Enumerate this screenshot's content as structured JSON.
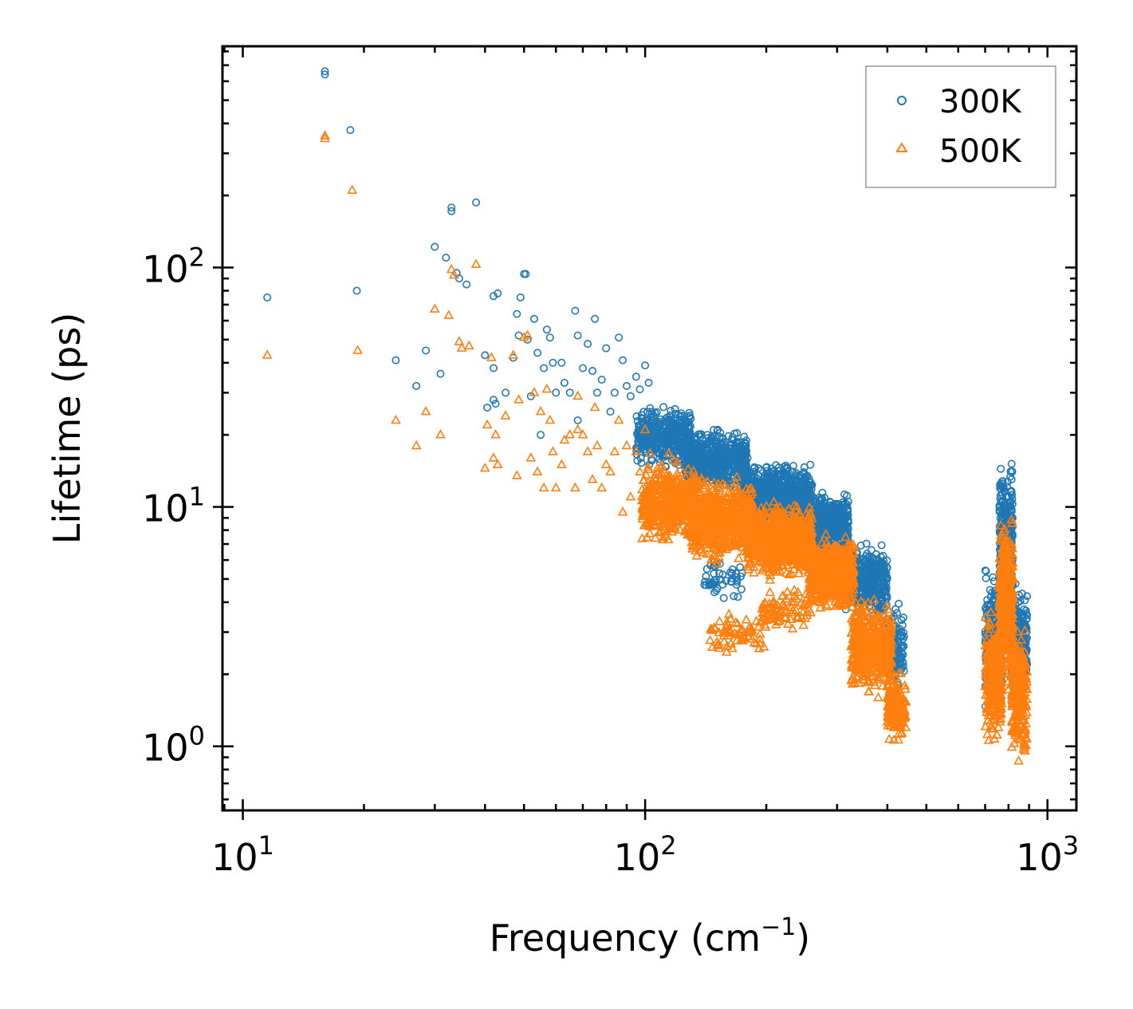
{
  "chart_data": {
    "type": "scatter",
    "title": "",
    "xlabel": "Frequency (cm",
    "xlabel_sup": "−1",
    "xlabel_end": ")",
    "ylabel": "Lifetime (ps)",
    "xscale": "log",
    "yscale": "log",
    "xlim": [
      8.9,
      1180
    ],
    "ylim": [
      0.54,
      840
    ],
    "xticks": [
      {
        "value": 10,
        "base": "10",
        "exp": "1"
      },
      {
        "value": 100,
        "base": "10",
        "exp": "2"
      },
      {
        "value": 1000,
        "base": "10",
        "exp": "3"
      }
    ],
    "yticks": [
      {
        "value": 1,
        "base": "10",
        "exp": "0"
      },
      {
        "value": 10,
        "base": "10",
        "exp": "1"
      },
      {
        "value": 100,
        "base": "10",
        "exp": "2"
      }
    ],
    "legend_position": "top-right",
    "series": [
      {
        "name": "300K",
        "marker": "circle",
        "color": "#1f77b4",
        "points": [
          [
            11.5,
            75
          ],
          [
            16,
            660
          ],
          [
            16,
            640
          ],
          [
            18.5,
            375
          ],
          [
            19.2,
            80
          ],
          [
            24,
            41
          ],
          [
            27,
            32
          ],
          [
            28.5,
            45
          ],
          [
            30,
            122
          ],
          [
            31,
            36
          ],
          [
            32,
            110
          ],
          [
            33,
            178
          ],
          [
            33,
            172
          ],
          [
            34,
            95
          ],
          [
            34.5,
            90
          ],
          [
            36,
            85
          ],
          [
            38,
            187
          ],
          [
            40,
            43
          ],
          [
            40.5,
            26
          ],
          [
            42,
            76
          ],
          [
            42,
            38
          ],
          [
            42,
            28
          ],
          [
            42.5,
            27
          ],
          [
            43,
            78
          ],
          [
            45,
            30
          ],
          [
            47,
            42
          ],
          [
            48,
            64
          ],
          [
            48.5,
            52
          ],
          [
            49,
            75
          ],
          [
            50,
            94
          ],
          [
            50.5,
            94
          ],
          [
            51,
            50
          ],
          [
            52,
            29
          ],
          [
            53,
            61
          ],
          [
            54,
            44
          ],
          [
            55,
            20
          ],
          [
            56,
            38
          ],
          [
            57,
            55
          ],
          [
            58,
            51
          ],
          [
            59,
            40
          ],
          [
            60,
            30
          ],
          [
            62,
            40
          ],
          [
            63,
            33
          ],
          [
            65,
            30
          ],
          [
            67,
            66
          ],
          [
            68,
            52
          ],
          [
            68,
            23
          ],
          [
            70,
            38
          ],
          [
            72,
            48
          ],
          [
            74,
            37
          ],
          [
            75,
            61
          ],
          [
            76,
            30
          ],
          [
            78,
            34
          ],
          [
            80,
            46
          ],
          [
            82,
            25
          ],
          [
            84,
            30
          ],
          [
            86,
            51
          ],
          [
            88,
            41
          ],
          [
            90,
            32
          ],
          [
            92,
            29
          ],
          [
            95,
            35
          ],
          [
            97,
            31
          ],
          [
            100,
            39
          ],
          [
            102,
            33
          ]
        ],
        "clusters": [
          {
            "x_min": 95,
            "x_max": 130,
            "y_min": 14,
            "y_max": 28,
            "count": 380
          },
          {
            "x_min": 125,
            "x_max": 180,
            "y_min": 11,
            "y_max": 22,
            "count": 600
          },
          {
            "x_min": 175,
            "x_max": 260,
            "y_min": 8,
            "y_max": 16,
            "count": 750
          },
          {
            "x_min": 255,
            "x_max": 320,
            "y_min": 6,
            "y_max": 12,
            "count": 500
          },
          {
            "x_min": 315,
            "x_max": 400,
            "y_min": 3.2,
            "y_max": 7.5,
            "count": 450
          },
          {
            "x_min": 395,
            "x_max": 440,
            "y_min": 1.6,
            "y_max": 4.2,
            "count": 150
          },
          {
            "x_min": 140,
            "x_max": 175,
            "y_min": 3.9,
            "y_max": 6.5,
            "count": 50
          },
          {
            "x_min": 700,
            "x_max": 770,
            "y_min": 1.3,
            "y_max": 6,
            "count": 240
          },
          {
            "x_min": 760,
            "x_max": 820,
            "y_min": 2.5,
            "y_max": 17,
            "count": 380
          },
          {
            "x_min": 815,
            "x_max": 890,
            "y_min": 1.2,
            "y_max": 6,
            "count": 240
          }
        ]
      },
      {
        "name": "500K",
        "marker": "triangle",
        "color": "#ff7f0e",
        "points": [
          [
            11.5,
            43
          ],
          [
            16,
            355
          ],
          [
            16,
            345
          ],
          [
            18.7,
            210
          ],
          [
            19.3,
            45
          ],
          [
            24,
            23
          ],
          [
            27,
            18
          ],
          [
            28.5,
            25
          ],
          [
            30,
            67
          ],
          [
            31,
            20
          ],
          [
            32.5,
            63
          ],
          [
            33,
            98
          ],
          [
            33.5,
            93
          ],
          [
            34.5,
            49
          ],
          [
            35,
            46
          ],
          [
            36.5,
            47
          ],
          [
            38,
            103
          ],
          [
            40,
            14.5
          ],
          [
            40.5,
            22
          ],
          [
            41.5,
            42
          ],
          [
            42,
            16
          ],
          [
            42.5,
            20
          ],
          [
            43,
            15
          ],
          [
            45,
            24
          ],
          [
            47,
            43
          ],
          [
            48,
            13.5
          ],
          [
            48.5,
            28
          ],
          [
            50,
            51
          ],
          [
            51,
            52
          ],
          [
            52,
            16
          ],
          [
            53,
            30
          ],
          [
            54,
            14
          ],
          [
            55,
            25
          ],
          [
            56,
            12
          ],
          [
            57,
            31
          ],
          [
            58,
            23
          ],
          [
            59,
            17
          ],
          [
            60,
            12
          ],
          [
            62,
            15
          ],
          [
            63,
            19
          ],
          [
            65,
            20
          ],
          [
            67,
            12
          ],
          [
            68,
            29
          ],
          [
            68,
            21
          ],
          [
            70,
            20
          ],
          [
            72,
            17
          ],
          [
            74,
            13
          ],
          [
            75,
            26
          ],
          [
            76,
            18
          ],
          [
            78,
            12
          ],
          [
            80,
            15
          ],
          [
            82,
            14
          ],
          [
            84,
            17
          ],
          [
            86,
            23
          ],
          [
            88,
            9.5
          ],
          [
            90,
            18
          ],
          [
            92,
            11
          ],
          [
            95,
            17
          ],
          [
            97,
            14
          ],
          [
            100,
            21
          ]
        ],
        "clusters": [
          {
            "x_min": 98,
            "x_max": 135,
            "y_min": 6.5,
            "y_max": 17,
            "count": 450
          },
          {
            "x_min": 130,
            "x_max": 185,
            "y_min": 5.5,
            "y_max": 14,
            "count": 650
          },
          {
            "x_min": 180,
            "x_max": 260,
            "y_min": 4.8,
            "y_max": 11,
            "count": 800
          },
          {
            "x_min": 255,
            "x_max": 330,
            "y_min": 3.5,
            "y_max": 8,
            "count": 550
          },
          {
            "x_min": 325,
            "x_max": 410,
            "y_min": 1.5,
            "y_max": 4.5,
            "count": 450
          },
          {
            "x_min": 400,
            "x_max": 445,
            "y_min": 0.95,
            "y_max": 2.2,
            "count": 160
          },
          {
            "x_min": 145,
            "x_max": 200,
            "y_min": 2.3,
            "y_max": 3.8,
            "count": 70
          },
          {
            "x_min": 195,
            "x_max": 260,
            "y_min": 3.0,
            "y_max": 4.8,
            "count": 80
          },
          {
            "x_min": 700,
            "x_max": 770,
            "y_min": 0.9,
            "y_max": 4,
            "count": 240
          },
          {
            "x_min": 760,
            "x_max": 820,
            "y_min": 1.5,
            "y_max": 10.5,
            "count": 380
          },
          {
            "x_min": 815,
            "x_max": 890,
            "y_min": 0.75,
            "y_max": 3.5,
            "count": 240
          }
        ]
      }
    ]
  }
}
